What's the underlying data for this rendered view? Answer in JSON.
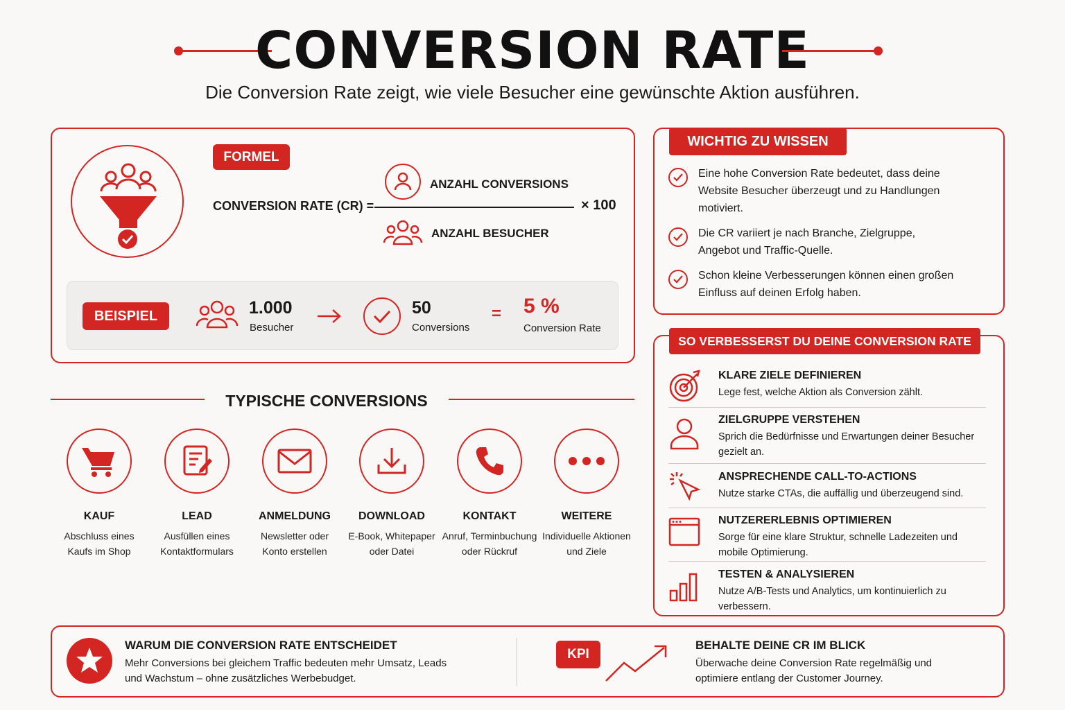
{
  "header": {
    "title": "CONVERSION RATE",
    "subtitle": "Die Conversion Rate zeigt, wie viele Besucher eine gewünschte Aktion ausführen."
  },
  "formula": {
    "badge": "FORMEL",
    "label": "CONVERSION RATE (CR) =",
    "numerator": "ANZAHL CONVERSIONS",
    "denominator": "ANZAHL BESUCHER",
    "multiplier": "× 100"
  },
  "example": {
    "badge": "BEISPIEL",
    "visitors_value": "1.000",
    "visitors_label": "Besucher",
    "conversions_value": "50",
    "conversions_label": "Conversions",
    "equals": "=",
    "result_value": "5 %",
    "result_label": "Conversion Rate"
  },
  "typical": {
    "title": "TYPISCHE CONVERSIONS",
    "items": [
      {
        "icon": "cart-icon",
        "title": "KAUF",
        "line1": "Abschluss eines",
        "line2": "Kaufs im Shop"
      },
      {
        "icon": "form-icon",
        "title": "LEAD",
        "line1": "Ausfüllen eines",
        "line2": "Kontaktformulars"
      },
      {
        "icon": "mail-icon",
        "title": "ANMELDUNG",
        "line1": "Newsletter oder",
        "line2": "Konto erstellen"
      },
      {
        "icon": "download-icon",
        "title": "DOWNLOAD",
        "line1": "E-Book, Whitepaper",
        "line2": "oder Datei"
      },
      {
        "icon": "phone-icon",
        "title": "KONTAKT",
        "line1": "Anruf, Terminbuchung",
        "line2": "oder Rückruf"
      },
      {
        "icon": "more-icon",
        "title": "WEITERE",
        "line1": "Individuelle Aktionen",
        "line2": "und Ziele"
      }
    ]
  },
  "important": {
    "badge": "WICHTIG ZU WISSEN",
    "items": [
      {
        "l1": "Eine hohe Conversion Rate bedeutet, dass deine",
        "l2": "Website Besucher überzeugt und zu Handlungen",
        "l3": "motiviert."
      },
      {
        "l1": "Die CR variiert je nach Branche, Zielgruppe,",
        "l2": "Angebot und Traffic-Quelle.",
        "l3": ""
      },
      {
        "l1": "Schon kleine Verbesserungen können einen großen",
        "l2": "Einfluss auf deinen Erfolg haben.",
        "l3": ""
      }
    ]
  },
  "improve": {
    "badge": "SO VERBESSERST DU DEINE CONVERSION RATE",
    "items": [
      {
        "icon": "target-icon",
        "title": "KLARE ZIELE DEFINIEREN",
        "desc": "Lege fest, welche Aktion als Conversion zählt."
      },
      {
        "icon": "user-icon",
        "title": "ZIELGRUPPE VERSTEHEN",
        "desc": "Sprich die Bedürfnisse und Erwartungen deiner Besucher gezielt an."
      },
      {
        "icon": "cursor-click-icon",
        "title": "ANSPRECHENDE CALL-TO-ACTIONS",
        "desc": "Nutze starke CTAs, die auffällig und überzeugend sind."
      },
      {
        "icon": "browser-window-icon",
        "title": "NUTZERERLEBNIS OPTIMIEREN",
        "desc": "Sorge für eine klare Struktur, schnelle Ladezeiten und mobile Optimierung."
      },
      {
        "icon": "bar-chart-icon",
        "title": "TESTEN & ANALYSIEREN",
        "desc": "Nutze A/B-Tests und Analytics, um kontinuierlich zu verbessern."
      }
    ]
  },
  "bottom": {
    "why_title": "WARUM DIE CONVERSION RATE ENTSCHEIDET",
    "why_desc1": "Mehr Conversions bei gleichem Traffic bedeuten mehr Umsatz, Leads",
    "why_desc2": "und Wachstum – ohne zusätzliches Werbebudget.",
    "kpi_badge": "KPI",
    "watch_title": "BEHALTE DEINE CR IM BLICK",
    "watch_desc1": "Überwache deine Conversion Rate regelmäßig und",
    "watch_desc2": "optimiere entlang der Customer Journey."
  },
  "colors": {
    "accent": "#d32522",
    "background": "#faf8f6"
  }
}
